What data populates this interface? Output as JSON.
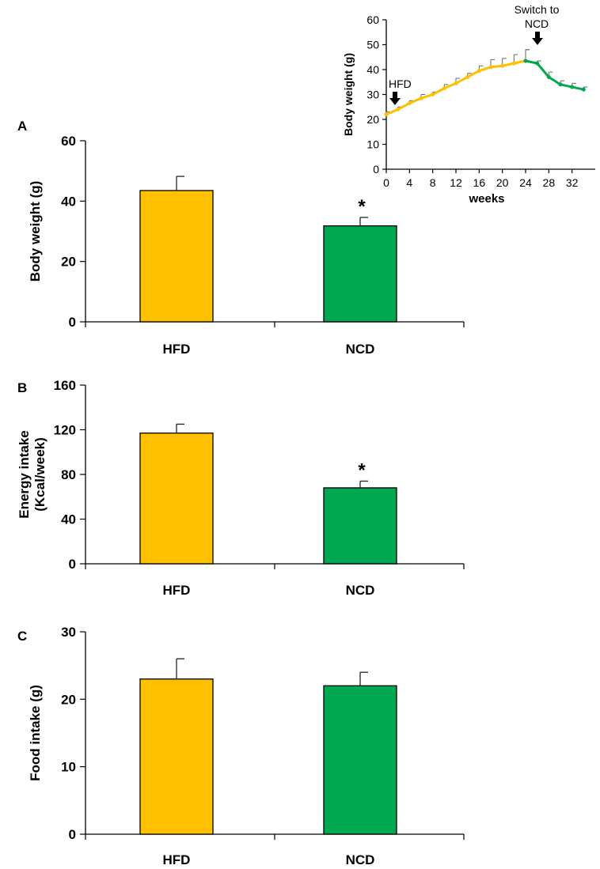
{
  "colors": {
    "hfd": "#FFC000",
    "ncd": "#00A94F",
    "axis": "#000000",
    "error": "#222222"
  },
  "chart_data": [
    {
      "id": "A",
      "type": "bar",
      "panel_label": "A",
      "ylabel": "Body weight (g)",
      "ylim": [
        0,
        60
      ],
      "yticks": [
        0,
        20,
        40,
        60
      ],
      "categories": [
        "HFD",
        "NCD"
      ],
      "values": [
        43.5,
        31.8
      ],
      "errors": [
        4.7,
        2.8
      ],
      "significance": [
        "",
        "*"
      ]
    },
    {
      "id": "B",
      "type": "bar",
      "panel_label": "B",
      "ylabel_lines": [
        "Energy intake",
        "(Kcal/week)"
      ],
      "ylim": [
        0,
        160
      ],
      "yticks": [
        0,
        40,
        80,
        120,
        160
      ],
      "categories": [
        "HFD",
        "NCD"
      ],
      "values": [
        117,
        68
      ],
      "errors": [
        8,
        6
      ],
      "significance": [
        "",
        "*"
      ]
    },
    {
      "id": "C",
      "type": "bar",
      "panel_label": "C",
      "ylabel": "Food intake (g)",
      "ylim": [
        0,
        30
      ],
      "yticks": [
        0,
        10,
        20,
        30
      ],
      "categories": [
        "HFD",
        "NCD"
      ],
      "values": [
        23,
        22
      ],
      "errors": [
        3,
        2
      ],
      "significance": [
        "",
        ""
      ]
    },
    {
      "id": "inset",
      "type": "line",
      "xlabel": "weeks",
      "ylabel": "Body weight (g)",
      "xlim": [
        0,
        36
      ],
      "ylim": [
        0,
        60
      ],
      "xticks": [
        0,
        4,
        8,
        12,
        16,
        20,
        24,
        28,
        32
      ],
      "yticks": [
        0,
        10,
        20,
        30,
        40,
        50,
        60
      ],
      "series": [
        {
          "name": "HFD",
          "x": [
            0,
            2,
            4,
            6,
            8,
            10,
            12,
            14,
            16,
            18,
            20,
            22,
            24
          ],
          "y": [
            22,
            24,
            26.5,
            28.5,
            30,
            32.5,
            34.5,
            37,
            39.5,
            41,
            41.5,
            42.5,
            43.5
          ],
          "err": [
            1,
            1,
            1,
            1.5,
            1,
            1.5,
            2,
            1.5,
            2,
            3,
            3,
            3.5,
            4.5
          ]
        },
        {
          "name": "NCD",
          "x": [
            24,
            26,
            28,
            30,
            32,
            34
          ],
          "y": [
            43.5,
            42.5,
            37,
            34,
            33,
            32
          ],
          "err": [
            4.5,
            1,
            2,
            1.5,
            1.5,
            1
          ]
        }
      ],
      "annotations": {
        "hfd_start": "HFD",
        "switch_line1": "Switch to",
        "switch_line2": "NCD"
      }
    }
  ]
}
